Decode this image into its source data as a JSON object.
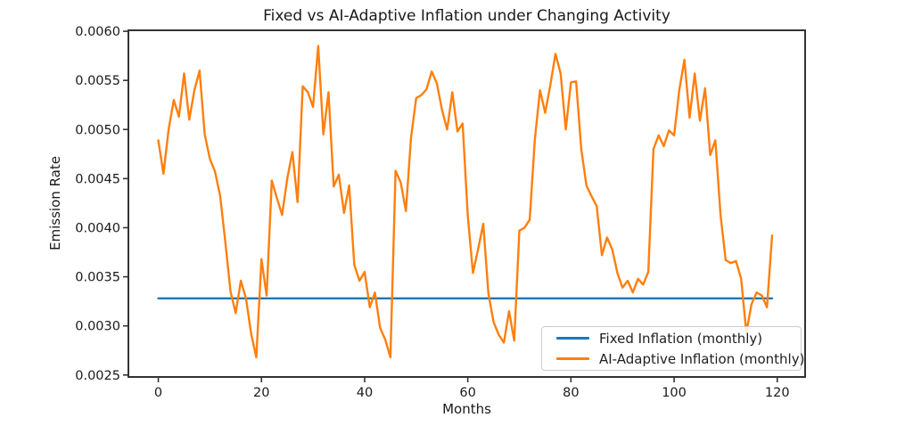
{
  "chart_data": {
    "type": "line",
    "title": "Fixed vs AI-Adaptive Inflation under Changing Activity",
    "xlabel": "Months",
    "ylabel": "Emission Rate",
    "xlim": [
      -5.8,
      125.4
    ],
    "ylim": [
      0.00248,
      0.00601
    ],
    "grid": false,
    "frame_color": "#333333",
    "tick_color": "#333333",
    "text_color": "#1a1a1a",
    "axes": {
      "x": {
        "label": "Months",
        "ticks": [
          "0",
          "20",
          "40",
          "60",
          "80",
          "100",
          "120"
        ]
      },
      "y": {
        "label": "Emission Rate",
        "ticks": [
          "0.0025",
          "0.0030",
          "0.0035",
          "0.0040",
          "0.0045",
          "0.0050",
          "0.0055",
          "0.0060"
        ]
      }
    },
    "legend": {
      "position": "lower right"
    },
    "series": [
      {
        "name": "Fixed Inflation (monthly)",
        "color": "#1f77b4",
        "style": "constant",
        "value": 0.00328,
        "x_start": 0,
        "x_end": 119
      },
      {
        "name": "AI-Adaptive Inflation (monthly)",
        "color": "#ff7f0e",
        "style": "monthly-series",
        "x_start": 0,
        "x_step": 1,
        "values": [
          0.00489,
          0.00455,
          0.005,
          0.0053,
          0.00513,
          0.00557,
          0.0051,
          0.0054,
          0.0056,
          0.00495,
          0.0047,
          0.00457,
          0.00432,
          0.00385,
          0.00335,
          0.00313,
          0.00346,
          0.00328,
          0.00292,
          0.00268,
          0.00368,
          0.00331,
          0.00448,
          0.0043,
          0.00413,
          0.0045,
          0.00477,
          0.00426,
          0.00544,
          0.00538,
          0.00523,
          0.00585,
          0.00495,
          0.00538,
          0.00442,
          0.00454,
          0.00415,
          0.00443,
          0.00362,
          0.00346,
          0.00355,
          0.00319,
          0.00334,
          0.00298,
          0.00286,
          0.00268,
          0.00458,
          0.00446,
          0.00417,
          0.00492,
          0.00532,
          0.00535,
          0.00541,
          0.00559,
          0.00547,
          0.0052,
          0.005,
          0.00538,
          0.00498,
          0.00506,
          0.00412,
          0.00354,
          0.00378,
          0.00404,
          0.00333,
          0.00304,
          0.00291,
          0.00283,
          0.00315,
          0.00285,
          0.00397,
          0.004,
          0.00408,
          0.0049,
          0.0054,
          0.00517,
          0.00545,
          0.00577,
          0.00557,
          0.005,
          0.00548,
          0.00549,
          0.0048,
          0.00443,
          0.00432,
          0.00422,
          0.00372,
          0.0039,
          0.00378,
          0.00354,
          0.00339,
          0.00346,
          0.00334,
          0.00348,
          0.00342,
          0.00355,
          0.0048,
          0.00494,
          0.00483,
          0.00499,
          0.00494,
          0.0054,
          0.00571,
          0.00512,
          0.00557,
          0.00509,
          0.00542,
          0.00474,
          0.00489,
          0.00413,
          0.00367,
          0.00364,
          0.00366,
          0.00348,
          0.00293,
          0.00322,
          0.00334,
          0.00331,
          0.00319,
          0.00392
        ]
      }
    ]
  }
}
